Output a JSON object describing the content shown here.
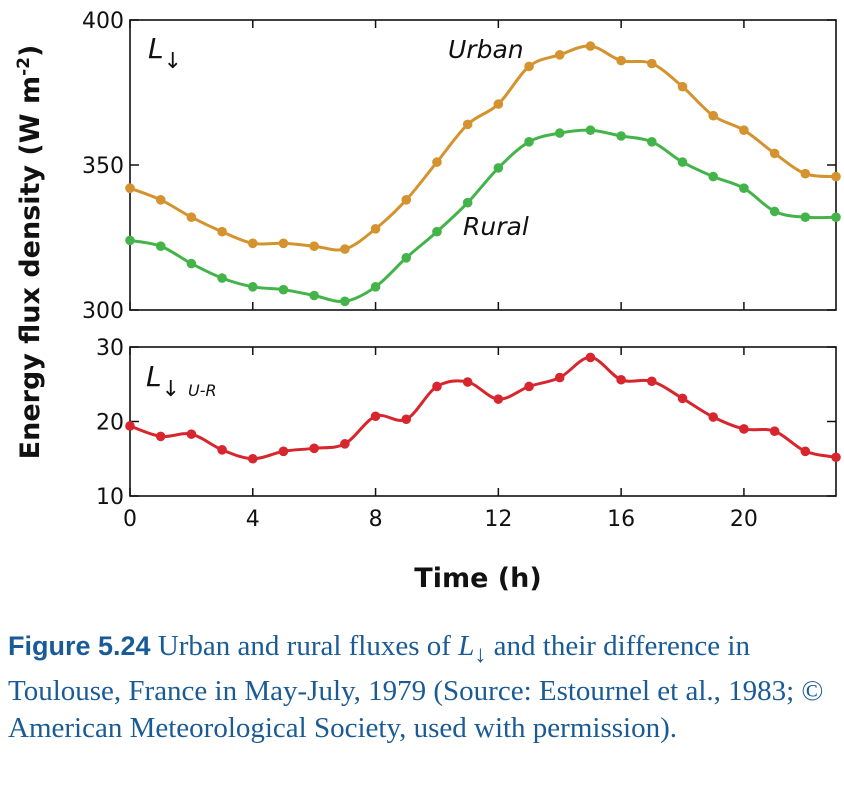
{
  "figure": {
    "y_axis_title": "Energy flux density (W m",
    "y_axis_title_sup": "-2",
    "y_axis_title_close": ")",
    "x_axis_title": "Time (h)"
  },
  "caption": {
    "figure_number": "Figure 5.24",
    "text_part1": " Urban and rural fluxes of ",
    "symbol": "L",
    "symbol_sub": "↓",
    "text_part2": " and their difference in Toulouse, France in May-July, 1979 (Source: Estournel et al., 1983; © American Meteorological Society, used with permission)."
  },
  "chart_data": [
    {
      "type": "line",
      "panel_label": "L",
      "panel_label_sub": "↓",
      "x": [
        0,
        1,
        2,
        3,
        4,
        5,
        6,
        7,
        8,
        9,
        10,
        11,
        12,
        13,
        14,
        15,
        16,
        17,
        18,
        19,
        20,
        21,
        22,
        23
      ],
      "ylim": [
        300,
        400
      ],
      "yticks": [
        300,
        350,
        400
      ],
      "series": [
        {
          "name": "Urban",
          "color": "#d4932e",
          "values": [
            342,
            338,
            332,
            327,
            323,
            323,
            322,
            321,
            328,
            338,
            351,
            364,
            371,
            384,
            388,
            391,
            386,
            385,
            377,
            367,
            362,
            354,
            347,
            346
          ]
        },
        {
          "name": "Rural",
          "color": "#44b44a",
          "values": [
            324,
            322,
            316,
            311,
            308,
            307,
            305,
            303,
            308,
            318,
            327,
            337,
            349,
            358,
            361,
            362,
            360,
            358,
            351,
            346,
            342,
            334,
            332,
            332
          ]
        }
      ]
    },
    {
      "type": "line",
      "panel_label": "L",
      "panel_label_sub": "↓",
      "panel_label_sub2": "U-R",
      "x": [
        0,
        1,
        2,
        3,
        4,
        5,
        6,
        7,
        8,
        9,
        10,
        11,
        12,
        13,
        14,
        15,
        16,
        17,
        18,
        19,
        20,
        21,
        22,
        23
      ],
      "xlim": [
        0,
        23
      ],
      "xticks": [
        0,
        4,
        8,
        12,
        16,
        20
      ],
      "ylim": [
        10,
        30
      ],
      "yticks": [
        10,
        20,
        30
      ],
      "series": [
        {
          "name": "",
          "color": "#d7262e",
          "values": [
            19.4,
            18.0,
            18.3,
            16.2,
            15.0,
            16.0,
            16.4,
            17.0,
            20.7,
            20.3,
            24.7,
            25.3,
            23.0,
            24.7,
            25.9,
            28.6,
            25.6,
            25.4,
            23.1,
            20.6,
            19.0,
            18.7,
            16.0,
            15.2
          ]
        }
      ]
    }
  ]
}
